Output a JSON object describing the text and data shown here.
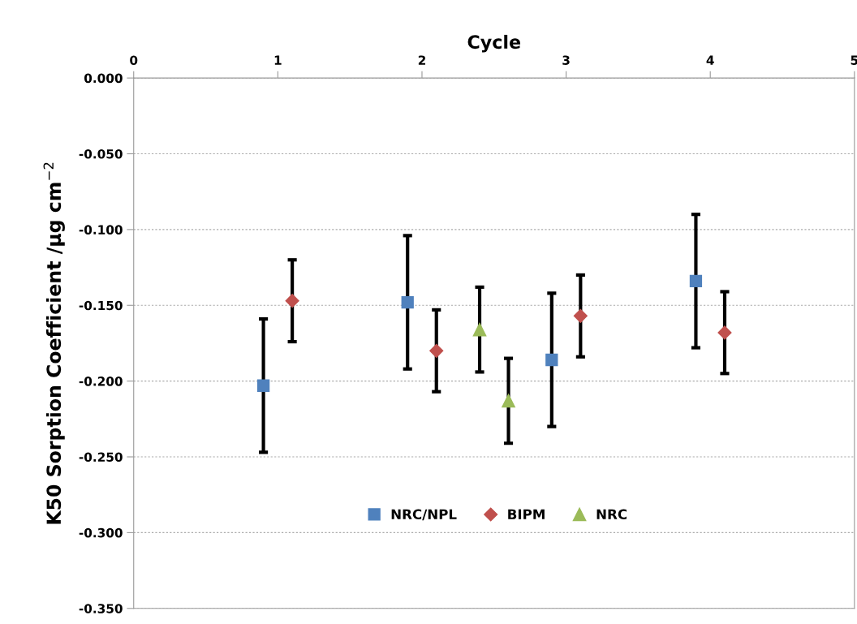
{
  "chart_data": {
    "type": "scatter",
    "xlabel": "Cycle",
    "ylabel": "K50 Sorption Coefficient /µg cm$^{−2}$",
    "xlim": [
      0,
      5
    ],
    "xticks": [
      0,
      1,
      2,
      3,
      4,
      5
    ],
    "ylim": [
      -0.35,
      0
    ],
    "yticks": [
      {
        "value": 0,
        "label": "0.000"
      },
      {
        "value": -0.05,
        "label": "-0.050"
      },
      {
        "value": -0.1,
        "label": "-0.100"
      },
      {
        "value": -0.15,
        "label": "-0.150"
      },
      {
        "value": -0.2,
        "label": "-0.200"
      },
      {
        "value": -0.25,
        "label": "-0.250"
      },
      {
        "value": -0.3,
        "label": "-0.300"
      },
      {
        "value": -0.35,
        "label": "-0.350"
      }
    ],
    "grid": "y",
    "legend": "bottom",
    "series": [
      {
        "name": "NRC/NPL",
        "color": "#4f81bd",
        "marker": "square",
        "x": [
          0.9,
          1.9,
          2.9,
          3.9
        ],
        "values": [
          -0.203,
          -0.148,
          -0.186,
          -0.134
        ],
        "errors": [
          0.044,
          0.044,
          0.044,
          0.044
        ]
      },
      {
        "name": "BIPM",
        "color": "#c0504d",
        "marker": "diamond",
        "x": [
          1.1,
          2.1,
          3.1,
          4.1
        ],
        "values": [
          -0.147,
          -0.18,
          -0.157,
          -0.168
        ],
        "errors": [
          0.027,
          0.027,
          0.027,
          0.027
        ]
      },
      {
        "name": "NRC",
        "color": "#9bbb59",
        "marker": "triangle",
        "x": [
          2.4,
          2.6
        ],
        "values": [
          -0.166,
          -0.213
        ],
        "errors": [
          0.028,
          0.028
        ]
      }
    ]
  }
}
